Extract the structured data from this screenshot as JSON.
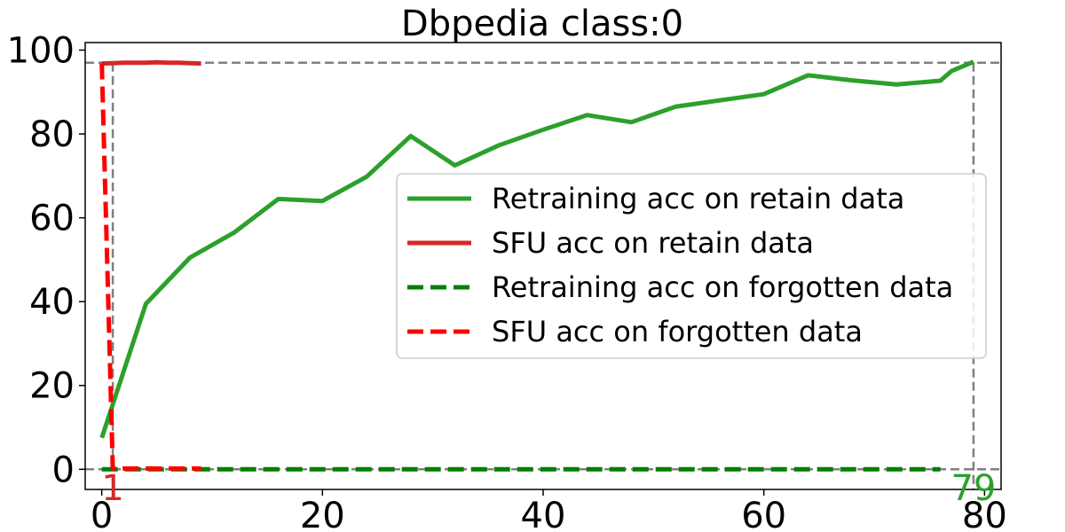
{
  "chart_data": {
    "type": "line",
    "title": "Dbpedia class:0",
    "xlabel": "",
    "ylabel": "",
    "xlim": [
      -1.5,
      81.5
    ],
    "ylim": [
      -4.8,
      101.8
    ],
    "x_ticks": [
      0,
      20,
      40,
      60,
      80
    ],
    "y_ticks": [
      0,
      20,
      40,
      60,
      80,
      100
    ],
    "grid": false,
    "legend_placement": "center-right",
    "series": [
      {
        "name": "Retraining acc on retain data",
        "style": "solid",
        "color": "#2ca02c",
        "x": [
          0,
          1,
          4,
          8,
          12,
          16,
          20,
          24,
          28,
          32,
          36,
          40,
          44,
          48,
          52,
          56,
          60,
          64,
          68,
          72,
          76,
          77,
          79
        ],
        "y": [
          7.5,
          15.5,
          39.5,
          50.5,
          56.5,
          64.5,
          64.0,
          69.8,
          79.5,
          72.5,
          77.3,
          81.0,
          84.5,
          82.8,
          86.5,
          88.0,
          89.5,
          94.0,
          92.8,
          91.8,
          92.7,
          95.0,
          97.2
        ]
      },
      {
        "name": "SFU acc on retain data",
        "style": "solid",
        "color": "#d62728",
        "x": [
          0,
          1,
          2,
          3,
          4,
          5,
          6,
          7,
          8,
          9
        ],
        "y": [
          96.8,
          96.9,
          97.0,
          97.0,
          97.0,
          97.1,
          97.0,
          97.0,
          96.9,
          96.8
        ]
      },
      {
        "name": "Retraining acc on forgotten data",
        "style": "dashed",
        "color": "#008000",
        "x": [
          0,
          10,
          20,
          30,
          40,
          50,
          60,
          70,
          76
        ],
        "y": [
          0,
          0,
          0,
          0,
          0,
          0,
          0,
          0,
          0
        ]
      },
      {
        "name": "SFU acc on forgotten data",
        "style": "dashed",
        "color": "#ff0000",
        "x": [
          0,
          1,
          2,
          3,
          4,
          5,
          6,
          7,
          8,
          9
        ],
        "y": [
          96.8,
          0.2,
          0.2,
          0.2,
          0.2,
          0.2,
          0.2,
          0.2,
          0.2,
          0.2
        ]
      }
    ],
    "reference_lines": {
      "color": "#808080",
      "horizontal": [
        97.0,
        0
      ],
      "vertical": [
        {
          "x": 1,
          "y_top": 97.0
        },
        {
          "x": 79,
          "y_top": 97.0
        }
      ]
    },
    "annotations": [
      {
        "text": "1",
        "x": 1,
        "y": -4.8,
        "color": "#d62728"
      },
      {
        "text": "79",
        "x": 79,
        "y": -4.8,
        "color": "#2ca02c"
      }
    ]
  }
}
